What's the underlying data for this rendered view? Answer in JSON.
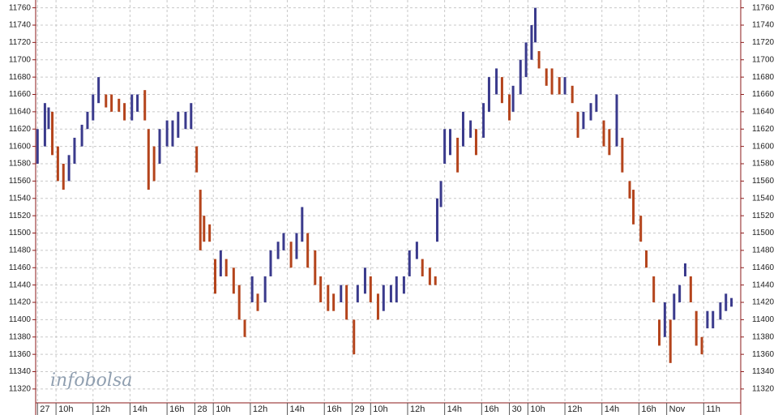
{
  "chart_data": {
    "type": "range-bar",
    "watermark": "infobolsa",
    "up_color": "#3a3a8c",
    "down_color": "#b4441c",
    "ylim": [
      11304,
      11769
    ],
    "yticks": [
      11320,
      11340,
      11360,
      11380,
      11400,
      11420,
      11440,
      11460,
      11480,
      11500,
      11520,
      11540,
      11560,
      11580,
      11600,
      11620,
      11640,
      11660,
      11680,
      11700,
      11720,
      11740,
      11760
    ],
    "xlim": [
      -0.1,
      38
    ],
    "xticks": [
      {
        "value": 0,
        "label": "27"
      },
      {
        "value": 1,
        "label": "10h"
      },
      {
        "value": 3,
        "label": "12h"
      },
      {
        "value": 5,
        "label": "14h"
      },
      {
        "value": 7,
        "label": "16h"
      },
      {
        "value": 8.5,
        "label": "28"
      },
      {
        "value": 9.5,
        "label": "10h"
      },
      {
        "value": 11.5,
        "label": "12h"
      },
      {
        "value": 13.5,
        "label": "14h"
      },
      {
        "value": 15.5,
        "label": "16h"
      },
      {
        "value": 17,
        "label": "29"
      },
      {
        "value": 18,
        "label": "10h"
      },
      {
        "value": 20,
        "label": "12h"
      },
      {
        "value": 22,
        "label": "14h"
      },
      {
        "value": 24,
        "label": "16h"
      },
      {
        "value": 25.5,
        "label": "30"
      },
      {
        "value": 26.5,
        "label": "10h"
      },
      {
        "value": 28.5,
        "label": "12h"
      },
      {
        "value": 30.5,
        "label": "14h"
      },
      {
        "value": 32.5,
        "label": "16h"
      },
      {
        "value": 34,
        "label": "Nov"
      },
      {
        "value": 36,
        "label": "11h"
      }
    ],
    "grid": true,
    "x": [
      0.0,
      0.4,
      0.6,
      0.8,
      1.1,
      1.4,
      1.7,
      2.0,
      2.4,
      2.7,
      3.0,
      3.3,
      3.7,
      4.0,
      4.4,
      4.7,
      5.1,
      5.4,
      5.8,
      6.0,
      6.3,
      6.6,
      7.0,
      7.3,
      7.6,
      8.0,
      8.3,
      8.6,
      8.8,
      9.0,
      9.3,
      9.6,
      9.9,
      10.2,
      10.6,
      10.9,
      11.2,
      11.6,
      11.9,
      12.3,
      12.6,
      13.0,
      13.3,
      13.7,
      14.0,
      14.3,
      14.6,
      15.0,
      15.3,
      15.7,
      16.0,
      16.4,
      16.7,
      17.1,
      17.3,
      17.7,
      18.0,
      18.4,
      18.7,
      19.1,
      19.4,
      19.8,
      20.1,
      20.5,
      20.8,
      21.2,
      21.5,
      21.6,
      21.8,
      22.0,
      22.3,
      22.7,
      23.0,
      23.4,
      23.7,
      24.1,
      24.4,
      24.8,
      25.1,
      25.5,
      25.7,
      26.1,
      26.4,
      26.7,
      26.9,
      27.1,
      27.5,
      27.8,
      28.2,
      28.5,
      28.9,
      29.2,
      29.5,
      29.9,
      30.2,
      30.6,
      30.9,
      31.3,
      31.6,
      32.0,
      32.2,
      32.6,
      32.9,
      33.3,
      33.6,
      33.9,
      34.2,
      34.4,
      34.7,
      35.0,
      35.3,
      35.6,
      35.9,
      36.2,
      36.5,
      36.9,
      37.2,
      37.5
    ],
    "high": [
      11620,
      11650,
      11645,
      11640,
      11600,
      11580,
      11590,
      11610,
      11625,
      11640,
      11660,
      11680,
      11660,
      11660,
      11655,
      11650,
      11660,
      11660,
      11665,
      11620,
      11600,
      11620,
      11630,
      11630,
      11640,
      11640,
      11650,
      11600,
      11550,
      11520,
      11510,
      11470,
      11480,
      11470,
      11460,
      11440,
      11400,
      11450,
      11430,
      11450,
      11480,
      11490,
      11500,
      11490,
      11500,
      11530,
      11500,
      11480,
      11450,
      11440,
      11430,
      11440,
      11440,
      11400,
      11440,
      11460,
      11450,
      11430,
      11440,
      11440,
      11450,
      11450,
      11480,
      11490,
      11470,
      11460,
      11450,
      11540,
      11560,
      11620,
      11620,
      11610,
      11640,
      11630,
      11620,
      11650,
      11680,
      11690,
      11680,
      11660,
      11670,
      11700,
      11720,
      11740,
      11760,
      11710,
      11690,
      11690,
      11680,
      11680,
      11670,
      11640,
      11640,
      11650,
      11660,
      11630,
      11620,
      11660,
      11610,
      11560,
      11550,
      11520,
      11480,
      11450,
      11400,
      11420,
      11400,
      11430,
      11440,
      11465,
      11450,
      11410,
      11380,
      11410,
      11410,
      11420,
      11430,
      11425
    ],
    "low": [
      11580,
      11600,
      11620,
      11590,
      11560,
      11550,
      11560,
      11580,
      11600,
      11620,
      11630,
      11650,
      11645,
      11640,
      11640,
      11630,
      11630,
      11640,
      11630,
      11550,
      11560,
      11580,
      11600,
      11600,
      11610,
      11620,
      11620,
      11570,
      11480,
      11490,
      11490,
      11430,
      11450,
      11450,
      11430,
      11400,
      11380,
      11420,
      11410,
      11420,
      11450,
      11470,
      11480,
      11460,
      11470,
      11490,
      11460,
      11440,
      11420,
      11410,
      11410,
      11420,
      11400,
      11360,
      11420,
      11430,
      11420,
      11400,
      11410,
      11420,
      11420,
      11430,
      11450,
      11470,
      11450,
      11440,
      11440,
      11490,
      11530,
      11580,
      11590,
      11570,
      11600,
      11610,
      11590,
      11610,
      11640,
      11660,
      11650,
      11630,
      11640,
      11660,
      11680,
      11700,
      11720,
      11690,
      11670,
      11660,
      11660,
      11660,
      11650,
      11610,
      11620,
      11630,
      11640,
      11600,
      11590,
      11600,
      11570,
      11540,
      11510,
      11490,
      11460,
      11420,
      11370,
      11380,
      11350,
      11400,
      11420,
      11450,
      11420,
      11370,
      11360,
      11390,
      11390,
      11400,
      11410,
      11415
    ]
  }
}
